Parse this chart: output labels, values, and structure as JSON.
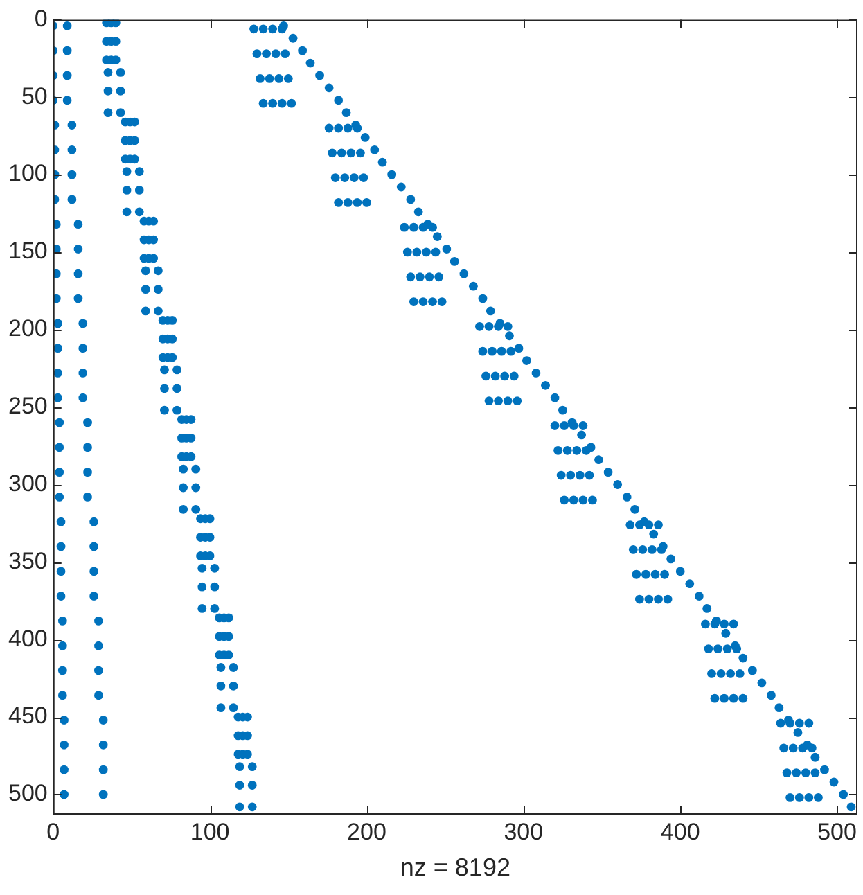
{
  "chart_data": {
    "type": "scatter",
    "xlabel": "nz = 8192",
    "marker": "circle",
    "xlim": [
      0,
      513
    ],
    "xticks": [
      0,
      100,
      200,
      300,
      400,
      500
    ],
    "ylim": [
      513,
      0
    ],
    "yticks": [
      0,
      50,
      100,
      150,
      200,
      250,
      300,
      350,
      400,
      450,
      500
    ],
    "grid": false,
    "legend": false,
    "series": [
      {
        "color": "#0072bd",
        "x": [
          0,
          0,
          0,
          0,
          1,
          1,
          1,
          1,
          2,
          2,
          2,
          2,
          3,
          3,
          3,
          3,
          4,
          4,
          4,
          4,
          5,
          5,
          5,
          5,
          6,
          6,
          6,
          6,
          7,
          7,
          7,
          7
        ],
        "values": [
          4,
          20,
          36,
          52,
          68,
          84,
          100,
          116,
          132,
          148,
          164,
          180,
          196,
          212,
          228,
          244,
          260,
          276,
          292,
          308,
          324,
          340,
          356,
          372,
          388,
          404,
          420,
          436,
          452,
          468,
          484,
          500
        ]
      },
      {
        "color": "#0072bd",
        "x": [
          9,
          9,
          9,
          9,
          12,
          12,
          12,
          12,
          16,
          16,
          16,
          16,
          19,
          19,
          19,
          19,
          22,
          22,
          22,
          22,
          26,
          26,
          26,
          26,
          29,
          29,
          29,
          29,
          32,
          32,
          32,
          32
        ],
        "values": [
          4,
          20,
          36,
          52,
          68,
          84,
          100,
          116,
          132,
          148,
          164,
          180,
          196,
          212,
          228,
          244,
          260,
          276,
          292,
          308,
          324,
          340,
          356,
          372,
          388,
          404,
          420,
          436,
          452,
          468,
          484,
          500
        ]
      },
      {
        "color": "#0072bd",
        "x": [
          34,
          37,
          40,
          34,
          37,
          40,
          34,
          37,
          40,
          35,
          43,
          35,
          43,
          35,
          43,
          46,
          49,
          52,
          46,
          49,
          52,
          46,
          49,
          52,
          47,
          55,
          47,
          55,
          47,
          55,
          58,
          61,
          64,
          58,
          61,
          64,
          58,
          61,
          64,
          59,
          67,
          59,
          67,
          59,
          67,
          70,
          73,
          76,
          70,
          73,
          76,
          70,
          73,
          76,
          71,
          79,
          71,
          79,
          71,
          79,
          82,
          85,
          88,
          82,
          85,
          88,
          82,
          85,
          88,
          83,
          91,
          83,
          91,
          83,
          91,
          94,
          97,
          100,
          94,
          97,
          100,
          94,
          97,
          100,
          95,
          103,
          95,
          103,
          95,
          103,
          106,
          109,
          112,
          106,
          109,
          112,
          106,
          109,
          112,
          107,
          115,
          107,
          115,
          107,
          115,
          118,
          121,
          124,
          118,
          121,
          124,
          118,
          121,
          124,
          119,
          127,
          119,
          127,
          119,
          127
        ],
        "values": [
          2,
          2,
          2,
          14,
          14,
          14,
          26,
          26,
          26,
          34,
          34,
          46,
          46,
          60,
          60,
          66,
          66,
          66,
          78,
          78,
          78,
          90,
          90,
          90,
          98,
          98,
          110,
          110,
          124,
          124,
          130,
          130,
          130,
          142,
          142,
          142,
          154,
          154,
          154,
          162,
          162,
          174,
          174,
          188,
          188,
          194,
          194,
          194,
          206,
          206,
          206,
          218,
          218,
          218,
          226,
          226,
          238,
          238,
          252,
          252,
          258,
          258,
          258,
          270,
          270,
          270,
          282,
          282,
          282,
          290,
          290,
          302,
          302,
          316,
          316,
          322,
          322,
          322,
          334,
          334,
          334,
          346,
          346,
          346,
          354,
          354,
          366,
          366,
          380,
          380,
          386,
          386,
          386,
          398,
          398,
          398,
          410,
          410,
          410,
          418,
          418,
          430,
          430,
          444,
          444,
          450,
          450,
          450,
          462,
          462,
          462,
          474,
          474,
          474,
          482,
          482,
          494,
          494,
          508,
          508
        ]
      },
      {
        "color": "#0072bd",
        "x": [
          147,
          153,
          159,
          164,
          170,
          176,
          182,
          187,
          193,
          199,
          205,
          210,
          216,
          222,
          228,
          233,
          239,
          245,
          251,
          256,
          262,
          268,
          274,
          279,
          285,
          291,
          297,
          302,
          308,
          314,
          320,
          325,
          331,
          337,
          343,
          348,
          354,
          360,
          366,
          371,
          377,
          383,
          389,
          394,
          400,
          406,
          412,
          417,
          423,
          429,
          435,
          440,
          446,
          452,
          458,
          463,
          469,
          475,
          481,
          486,
          492,
          498,
          504,
          509
        ],
        "values": [
          4,
          12,
          20,
          28,
          36,
          44,
          52,
          60,
          68,
          76,
          84,
          92,
          100,
          108,
          116,
          124,
          132,
          140,
          148,
          156,
          164,
          172,
          180,
          188,
          196,
          204,
          212,
          220,
          228,
          236,
          244,
          252,
          260,
          268,
          276,
          284,
          292,
          300,
          308,
          316,
          324,
          332,
          340,
          348,
          356,
          364,
          372,
          380,
          388,
          396,
          404,
          412,
          420,
          428,
          436,
          444,
          452,
          460,
          468,
          476,
          484,
          492,
          500,
          508
        ]
      },
      {
        "color": "#0072bd",
        "x": [
          128,
          134,
          140,
          146,
          130,
          136,
          142,
          148,
          132,
          138,
          144,
          150,
          134,
          140,
          146,
          152,
          176,
          182,
          188,
          194,
          178,
          184,
          190,
          196,
          180,
          186,
          192,
          198,
          182,
          188,
          194,
          200,
          224,
          230,
          236,
          242,
          226,
          232,
          238,
          244,
          228,
          234,
          240,
          246,
          230,
          236,
          242,
          248,
          272,
          278,
          284,
          290,
          274,
          280,
          286,
          292,
          276,
          282,
          288,
          294,
          278,
          284,
          290,
          296,
          320,
          326,
          332,
          338,
          322,
          328,
          334,
          340,
          324,
          330,
          336,
          342,
          326,
          332,
          338,
          344,
          368,
          374,
          380,
          386,
          370,
          376,
          382,
          388,
          372,
          378,
          384,
          390,
          374,
          380,
          386,
          392,
          416,
          422,
          428,
          434,
          418,
          424,
          430,
          436,
          420,
          426,
          432,
          438,
          422,
          428,
          434,
          440,
          464,
          470,
          476,
          482,
          466,
          472,
          478,
          484,
          468,
          474,
          480,
          486,
          470,
          476,
          482,
          488
        ],
        "values": [
          6,
          6,
          6,
          6,
          22,
          22,
          22,
          22,
          38,
          38,
          38,
          38,
          54,
          54,
          54,
          54,
          70,
          70,
          70,
          70,
          86,
          86,
          86,
          86,
          102,
          102,
          102,
          102,
          118,
          118,
          118,
          118,
          134,
          134,
          134,
          134,
          150,
          150,
          150,
          150,
          166,
          166,
          166,
          166,
          182,
          182,
          182,
          182,
          198,
          198,
          198,
          198,
          214,
          214,
          214,
          214,
          230,
          230,
          230,
          230,
          246,
          246,
          246,
          246,
          262,
          262,
          262,
          262,
          278,
          278,
          278,
          278,
          294,
          294,
          294,
          294,
          310,
          310,
          310,
          310,
          326,
          326,
          326,
          326,
          342,
          342,
          342,
          342,
          358,
          358,
          358,
          358,
          374,
          374,
          374,
          374,
          390,
          390,
          390,
          390,
          406,
          406,
          406,
          406,
          422,
          422,
          422,
          422,
          438,
          438,
          438,
          438,
          454,
          454,
          454,
          454,
          470,
          470,
          470,
          470,
          486,
          486,
          486,
          486,
          502,
          502,
          502,
          502
        ]
      }
    ]
  }
}
